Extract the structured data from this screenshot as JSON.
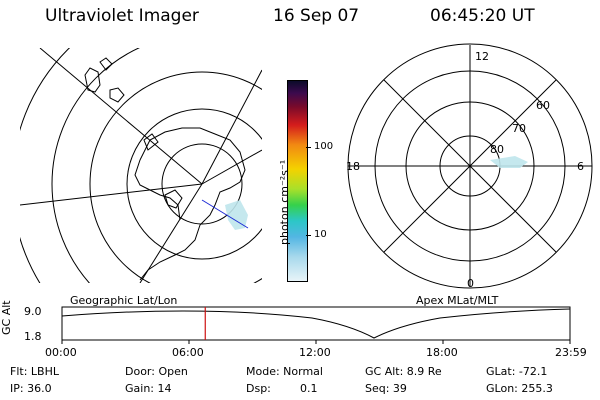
{
  "header": {
    "instrument": "Ultraviolet Imager",
    "date": "16 Sep 07",
    "time": "06:45:20 UT"
  },
  "left_panel": {
    "caption": "Geographic Lat/Lon"
  },
  "right_panel": {
    "caption": "Apex MLat/MLT",
    "mlt_labels": {
      "top": "12",
      "left": "18",
      "right": "6",
      "bottom": "0"
    },
    "lat_labels": [
      "60",
      "70",
      "80"
    ]
  },
  "colorbar": {
    "unit_label": "photon cm⁻²s⁻¹",
    "tick_100": "100",
    "tick_10": "10"
  },
  "altitude_plot": {
    "ylabel": "GC Alt",
    "ytick_top": "9.0",
    "ytick_bottom": "1.8",
    "xticks": [
      "00:00",
      "06:00",
      "12:00",
      "18:00",
      "23:59"
    ],
    "current_time_fraction": 0.282
  },
  "info": {
    "flt": "Flt: LBHL",
    "ip": "IP: 36.0",
    "door": "Door: Open",
    "gain": "Gain: 14",
    "mode": "Mode: Normal",
    "dsp_label": "Dsp:",
    "dsp_value": "0.1",
    "gc_alt": "GC Alt: 8.9 Re",
    "seq": "Seq: 39",
    "glat": "GLat: -72.1",
    "glon": "GLon: 255.3"
  }
}
